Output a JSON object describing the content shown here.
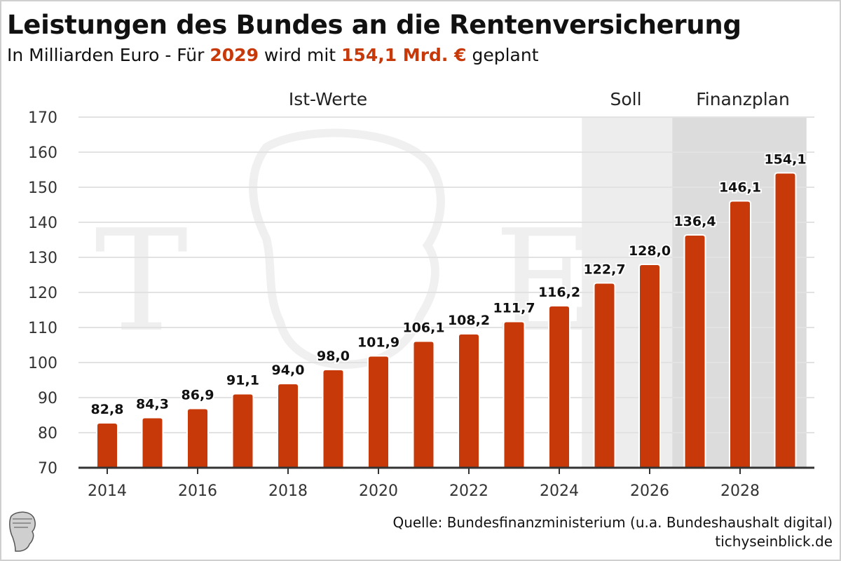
{
  "header": {
    "title": "Leistungen des Bundes an die Rentenversicherung",
    "subtitle_parts": [
      {
        "text": "In Milliarden Euro - Für ",
        "highlight": false
      },
      {
        "text": "2029",
        "highlight": true
      },
      {
        "text": " wird mit ",
        "highlight": false
      },
      {
        "text": "154,1 Mrd. €",
        "highlight": true
      },
      {
        "text": " geplant",
        "highlight": false
      }
    ]
  },
  "footer": {
    "source": "Quelle: Bundesfinanzministerium (u.a. Bundeshaushalt digital)",
    "site": "tichyseinblick.de"
  },
  "colors": {
    "bar": "#c8390a",
    "highlight": "#c8390a",
    "soll_bg": "#ededed",
    "finanzplan_bg": "#dcdcdc",
    "grid": "#e2e2e2",
    "axis": "#333333"
  },
  "chart_data": {
    "type": "bar",
    "title": "Leistungen des Bundes an die Rentenversicherung",
    "subtitle": "In Milliarden Euro - Für 2029 wird mit 154,1 Mrd. € geplant",
    "xlabel": "",
    "ylabel": "",
    "ylim": [
      70,
      170
    ],
    "yticks": [
      70,
      80,
      90,
      100,
      110,
      120,
      130,
      140,
      150,
      160,
      170
    ],
    "grid": true,
    "categories": [
      "2014",
      "2015",
      "2016",
      "2017",
      "2018",
      "2019",
      "2020",
      "2021",
      "2022",
      "2023",
      "2024",
      "2025",
      "2026",
      "2027",
      "2028",
      "2029"
    ],
    "xtick_labels": [
      "2014",
      "2016",
      "2018",
      "2020",
      "2022",
      "2024",
      "2026",
      "2028"
    ],
    "values": [
      82.8,
      84.3,
      86.9,
      91.1,
      94.0,
      98.0,
      101.9,
      106.1,
      108.2,
      111.7,
      116.2,
      122.7,
      128.0,
      136.4,
      146.1,
      154.1
    ],
    "value_labels": [
      "82,8",
      "84,3",
      "86,9",
      "91,1",
      "94,0",
      "98,0",
      "101,9",
      "106,1",
      "108,2",
      "111,7",
      "116,2",
      "122,7",
      "128,0",
      "136,4",
      "146,1",
      "154,1"
    ],
    "regions": [
      {
        "label": "Ist-Werte",
        "from": "2014",
        "to": "2024",
        "shaded": false
      },
      {
        "label": "Soll",
        "from": "2025",
        "to": "2026",
        "shaded": true
      },
      {
        "label": "Finanzplan",
        "from": "2027",
        "to": "2029",
        "shaded": true
      }
    ]
  }
}
